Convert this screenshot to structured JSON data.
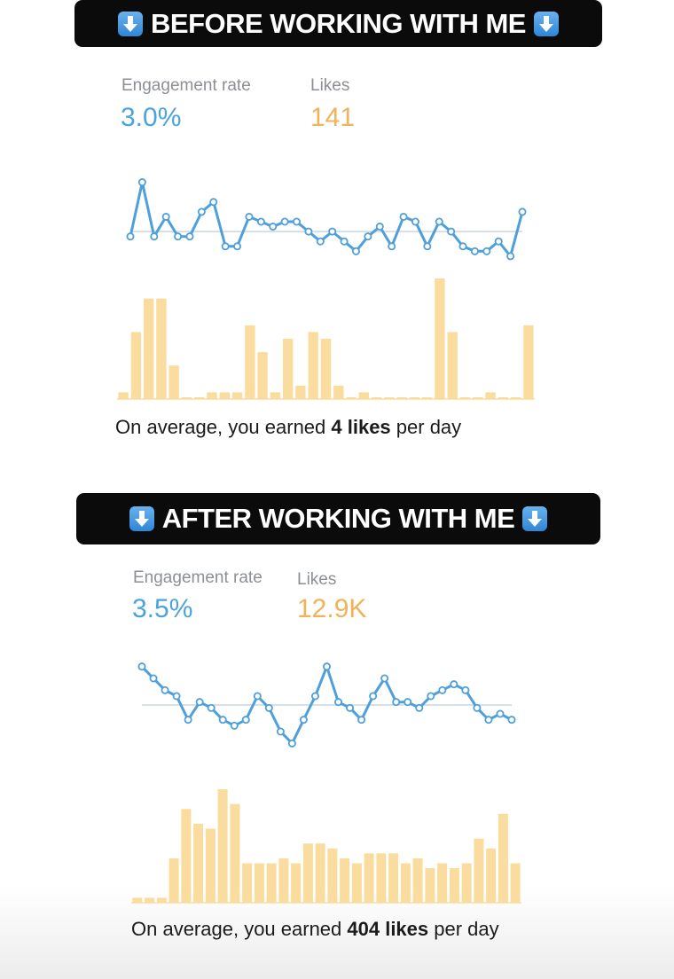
{
  "before": {
    "banner": "BEFORE WORKING WITH ME",
    "engagement_label": "Engagement rate",
    "engagement_value": "3.0%",
    "likes_label": "Likes",
    "likes_value": "141",
    "caption_prefix": "On average, you earned ",
    "caption_bold": "4 likes",
    "caption_suffix": " per day"
  },
  "after": {
    "banner": "AFTER WORKING WITH ME",
    "engagement_label": "Engagement rate",
    "engagement_value": "3.5%",
    "likes_label": "Likes",
    "likes_value": "12.9K",
    "caption_prefix": "On average, you earned ",
    "caption_bold": "404 likes",
    "caption_suffix": " per day"
  },
  "colors": {
    "line": "#4f9fdb",
    "bar": "#fbdc9f",
    "avg_line": "#c9d6e0",
    "banner_bg": "#0b0b0b"
  },
  "icons": [
    "down-arrow-icon"
  ],
  "chart_data": [
    {
      "type": "line",
      "name": "before-engagement",
      "y": [
        2.8,
        3.9,
        2.8,
        3.2,
        2.8,
        2.8,
        3.3,
        3.5,
        2.6,
        2.6,
        3.2,
        3.1,
        3.0,
        3.1,
        3.1,
        2.9,
        2.7,
        2.9,
        2.7,
        2.5,
        2.8,
        3.0,
        2.6,
        3.2,
        3.1,
        2.6,
        3.1,
        2.9,
        2.6,
        2.5,
        2.5,
        2.7,
        2.4,
        3.3
      ],
      "avg": 2.9
    },
    {
      "type": "bar",
      "name": "before-likes",
      "values": [
        1,
        10,
        15,
        15,
        5,
        0,
        0,
        1,
        1,
        1,
        11,
        7,
        1,
        9,
        2,
        10,
        9,
        2,
        0,
        1,
        0,
        0,
        0,
        0,
        0,
        18,
        10,
        0,
        0,
        1,
        0,
        0,
        11
      ]
    },
    {
      "type": "line",
      "name": "after-engagement",
      "y": [
        3.9,
        3.7,
        3.5,
        3.4,
        3.0,
        3.3,
        3.2,
        3.0,
        2.9,
        3.0,
        3.4,
        3.2,
        2.8,
        2.6,
        3.0,
        3.4,
        3.9,
        3.3,
        3.2,
        3.0,
        3.4,
        3.7,
        3.3,
        3.3,
        3.2,
        3.4,
        3.5,
        3.6,
        3.5,
        3.2,
        3.0,
        3.1,
        3.0
      ],
      "avg": 3.25
    },
    {
      "type": "bar",
      "name": "after-likes",
      "values": [
        1,
        1,
        1,
        9,
        19,
        16,
        15,
        23,
        20,
        8,
        8,
        8,
        9,
        8,
        12,
        12,
        11,
        9,
        8,
        10,
        10,
        10,
        8,
        9,
        7,
        8,
        7,
        8,
        13,
        11,
        18,
        8
      ]
    }
  ]
}
